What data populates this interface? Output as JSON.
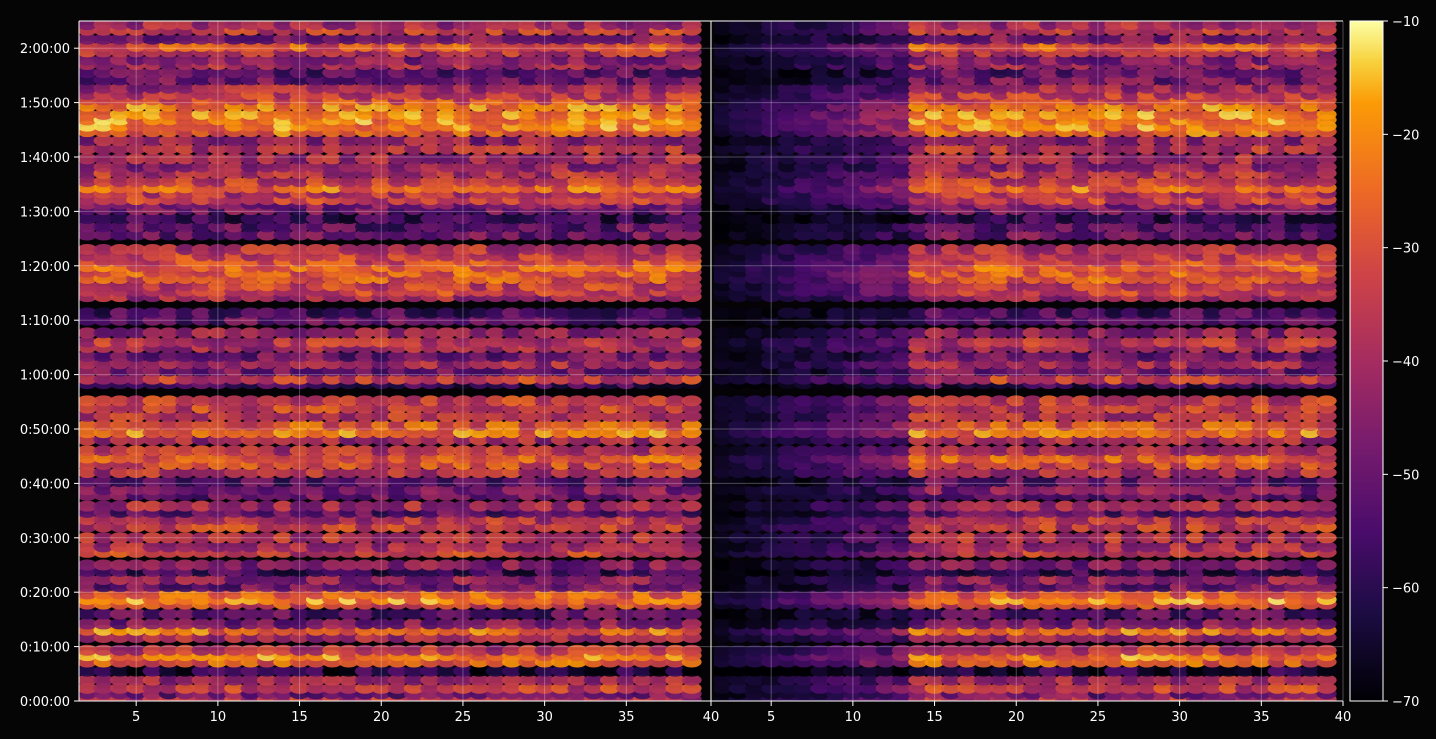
{
  "chart_data": {
    "type": "heatmap",
    "colormap": "inferno",
    "panels": [
      {
        "name": "",
        "x_range": [
          1.5,
          40
        ],
        "x_ticks": [
          5,
          10,
          15,
          20,
          25,
          30,
          35
        ]
      },
      {
        "name": "",
        "x_range": [
          40,
          40.5
        ],
        "x_ticks": [
          40
        ]
      },
      {
        "name": "",
        "x_range": [
          1.5,
          40
        ],
        "x_ticks": [
          5,
          10,
          15,
          20,
          25,
          30,
          35,
          40
        ]
      }
    ],
    "x_tick_labels_left": [
      "5",
      "10",
      "15",
      "20",
      "25",
      "30",
      "35"
    ],
    "x_tick_labels_right": [
      "40",
      "5",
      "10",
      "15",
      "20",
      "25",
      "30",
      "35",
      "40"
    ],
    "y_range_seconds": [
      0,
      7500
    ],
    "y_tick_labels": [
      "0:00:00",
      "0:10:00",
      "0:20:00",
      "0:30:00",
      "0:40:00",
      "0:50:00",
      "1:00:00",
      "1:10:00",
      "1:20:00",
      "1:30:00",
      "1:40:00",
      "1:50:00",
      "2:00:00"
    ],
    "colorbar": {
      "range": [
        -70,
        -10
      ],
      "ticks": [
        -70,
        -60,
        -50,
        -40,
        -30,
        -20,
        -10
      ],
      "tick_labels": [
        "−70",
        "−60",
        "−50",
        "−40",
        "−30",
        "−20",
        "−10"
      ]
    },
    "bands": [
      {
        "t": 20,
        "level": 0.55
      },
      {
        "t": 80,
        "level": 0.35
      },
      {
        "t": 140,
        "level": 0.6
      },
      {
        "t": 230,
        "level": 0.5
      },
      {
        "t": 330,
        "level": 0.15
      },
      {
        "t": 430,
        "level": 0.72
      },
      {
        "t": 500,
        "level": 0.8
      },
      {
        "t": 560,
        "level": 0.55
      },
      {
        "t": 700,
        "level": 0.5
      },
      {
        "t": 780,
        "level": 0.78
      },
      {
        "t": 850,
        "level": 0.4
      },
      {
        "t": 960,
        "level": 0.3
      },
      {
        "t": 1070,
        "level": 0.65
      },
      {
        "t": 1120,
        "level": 0.82
      },
      {
        "t": 1180,
        "level": 0.7
      },
      {
        "t": 1260,
        "level": 0.35
      },
      {
        "t": 1340,
        "level": 0.45
      },
      {
        "t": 1430,
        "level": 0.2
      },
      {
        "t": 1500,
        "level": 0.4
      },
      {
        "t": 1640,
        "level": 0.6
      },
      {
        "t": 1700,
        "level": 0.5
      },
      {
        "t": 1800,
        "level": 0.55
      },
      {
        "t": 1920,
        "level": 0.6
      },
      {
        "t": 2000,
        "level": 0.55
      },
      {
        "t": 2080,
        "level": 0.3
      },
      {
        "t": 2150,
        "level": 0.5
      },
      {
        "t": 2270,
        "level": 0.35
      },
      {
        "t": 2330,
        "level": 0.4
      },
      {
        "t": 2420,
        "level": 0.3
      },
      {
        "t": 2520,
        "level": 0.55
      },
      {
        "t": 2610,
        "level": 0.65
      },
      {
        "t": 2680,
        "level": 0.7
      },
      {
        "t": 2760,
        "level": 0.55
      },
      {
        "t": 2880,
        "level": 0.5
      },
      {
        "t": 2960,
        "level": 0.78
      },
      {
        "t": 3040,
        "level": 0.7
      },
      {
        "t": 3140,
        "level": 0.55
      },
      {
        "t": 3230,
        "level": 0.62
      },
      {
        "t": 3310,
        "level": 0.6
      },
      {
        "t": 3500,
        "level": 0.2
      },
      {
        "t": 3550,
        "level": 0.6
      },
      {
        "t": 3640,
        "level": 0.35
      },
      {
        "t": 3720,
        "level": 0.5
      },
      {
        "t": 3800,
        "level": 0.35
      },
      {
        "t": 3900,
        "level": 0.5
      },
      {
        "t": 3960,
        "level": 0.55
      },
      {
        "t": 4060,
        "level": 0.45
      },
      {
        "t": 4200,
        "level": 0.3
      },
      {
        "t": 4280,
        "level": 0.25
      },
      {
        "t": 4460,
        "level": 0.5
      },
      {
        "t": 4520,
        "level": 0.62
      },
      {
        "t": 4580,
        "level": 0.6
      },
      {
        "t": 4660,
        "level": 0.7
      },
      {
        "t": 4730,
        "level": 0.7
      },
      {
        "t": 4790,
        "level": 0.72
      },
      {
        "t": 4850,
        "level": 0.65
      },
      {
        "t": 4910,
        "level": 0.6
      },
      {
        "t": 4980,
        "level": 0.55
      },
      {
        "t": 5140,
        "level": 0.35
      },
      {
        "t": 5230,
        "level": 0.3
      },
      {
        "t": 5320,
        "level": 0.2
      },
      {
        "t": 5420,
        "level": 0.35
      },
      {
        "t": 5480,
        "level": 0.4
      },
      {
        "t": 5530,
        "level": 0.6
      },
      {
        "t": 5600,
        "level": 0.55
      },
      {
        "t": 5660,
        "level": 0.75
      },
      {
        "t": 5730,
        "level": 0.6
      },
      {
        "t": 5820,
        "level": 0.55
      },
      {
        "t": 5890,
        "level": 0.45
      },
      {
        "t": 5980,
        "level": 0.5
      },
      {
        "t": 6090,
        "level": 0.55
      },
      {
        "t": 6180,
        "level": 0.45
      },
      {
        "t": 6280,
        "level": 0.75
      },
      {
        "t": 6340,
        "level": 0.8
      },
      {
        "t": 6410,
        "level": 0.82
      },
      {
        "t": 6470,
        "level": 0.8
      },
      {
        "t": 6560,
        "level": 0.78
      },
      {
        "t": 6630,
        "level": 0.65
      },
      {
        "t": 6690,
        "level": 0.58
      },
      {
        "t": 6760,
        "level": 0.5
      },
      {
        "t": 6850,
        "level": 0.35
      },
      {
        "t": 6930,
        "level": 0.3
      },
      {
        "t": 7020,
        "level": 0.5
      },
      {
        "t": 7070,
        "level": 0.4
      },
      {
        "t": 7160,
        "level": 0.55
      },
      {
        "t": 7220,
        "level": 0.7
      },
      {
        "t": 7300,
        "level": 0.4
      },
      {
        "t": 7400,
        "level": 0.6
      },
      {
        "t": 7460,
        "level": 0.5
      }
    ],
    "right_panel_active_start_x": 14,
    "grid": true
  }
}
